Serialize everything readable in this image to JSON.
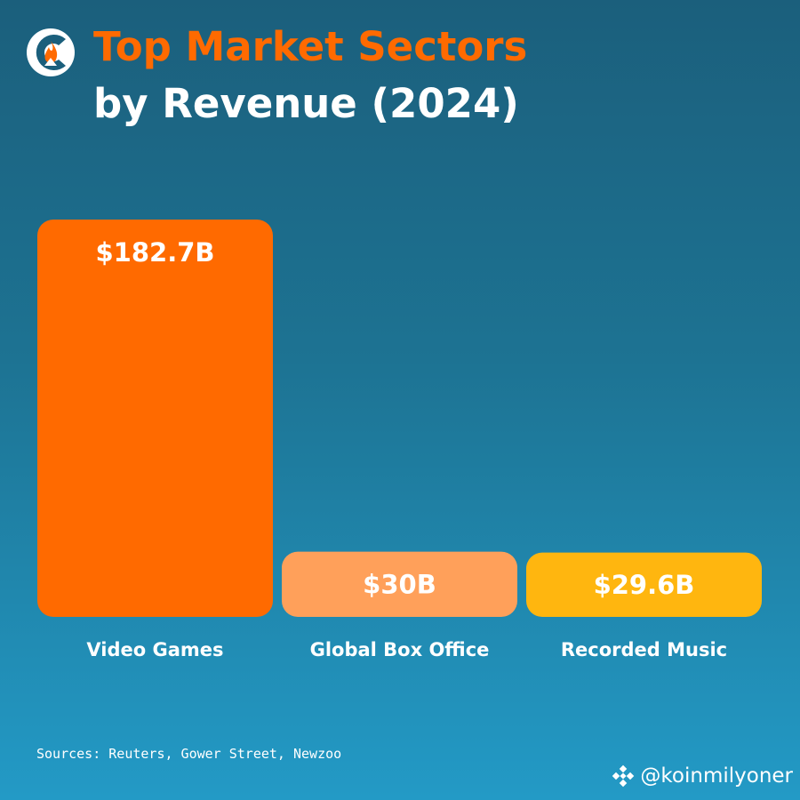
{
  "header": {
    "title_line1": "Top Market Sectors",
    "title_line2": "by Revenue (2024)",
    "logo_icon": "flame-c-logo-icon"
  },
  "colors": {
    "title_accent": "#ff6a00",
    "background_top": "#1b5f7c",
    "background_bottom": "#239ac6"
  },
  "chart_data": {
    "type": "bar",
    "categories": [
      "Video Games",
      "Global Box Office",
      "Recorded Music"
    ],
    "values": [
      182.7,
      30,
      29.6
    ],
    "value_labels": [
      "$182.7B",
      "$30B",
      "$29.6B"
    ],
    "bar_colors": [
      "#ff6a00",
      "#ffa05a",
      "#ffb60f"
    ],
    "unit": "B",
    "title": "Top Market Sectors by Revenue (2024)",
    "xlabel": "",
    "ylabel": "",
    "grid": false,
    "legend": "none"
  },
  "footer": {
    "sources": "Sources: Reuters, Gower Street, Newzoo",
    "watermark": "@koinmilyoner",
    "watermark_icon": "binance-icon"
  }
}
